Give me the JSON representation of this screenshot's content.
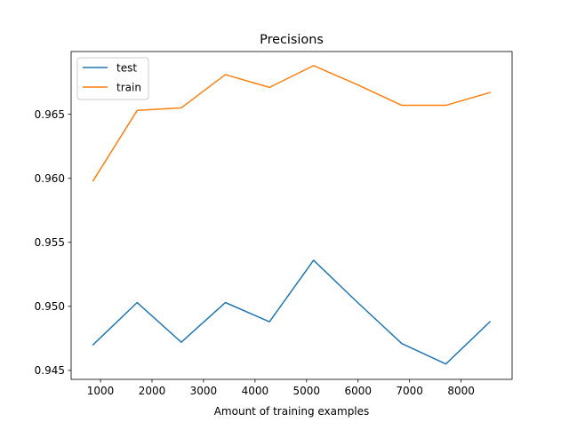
{
  "chart_data": {
    "type": "line",
    "title": "Precisions",
    "xlabel": "Amount of training examples",
    "ylabel": "",
    "xlim": [
      430,
      8990
    ],
    "ylim": [
      0.9443,
      0.9699
    ],
    "grid": false,
    "legend": {
      "position": "top-left",
      "entries": [
        "test",
        "train"
      ]
    },
    "xticks": [
      1000,
      2000,
      3000,
      4000,
      5000,
      6000,
      7000,
      8000
    ],
    "xtick_labels": [
      "1000",
      "2000",
      "3000",
      "4000",
      "5000",
      "6000",
      "7000",
      "8000"
    ],
    "yticks": [
      0.945,
      0.95,
      0.955,
      0.96,
      0.965
    ],
    "ytick_labels": [
      "0.945",
      "0.950",
      "0.955",
      "0.960",
      "0.965"
    ],
    "x": [
      856,
      1712,
      2568,
      3424,
      4280,
      5136,
      5992,
      6848,
      7704,
      8560
    ],
    "series": [
      {
        "name": "test",
        "color": "#1f77b4",
        "values": [
          0.947,
          0.9503,
          0.9472,
          0.9503,
          0.9488,
          0.9536,
          0.9503,
          0.9471,
          0.9455,
          0.9488
        ]
      },
      {
        "name": "train",
        "color": "#ff7f0e",
        "values": [
          0.9598,
          0.9653,
          0.9655,
          0.9681,
          0.9671,
          0.9688,
          0.9673,
          0.9657,
          0.9657,
          0.9667
        ]
      }
    ]
  }
}
